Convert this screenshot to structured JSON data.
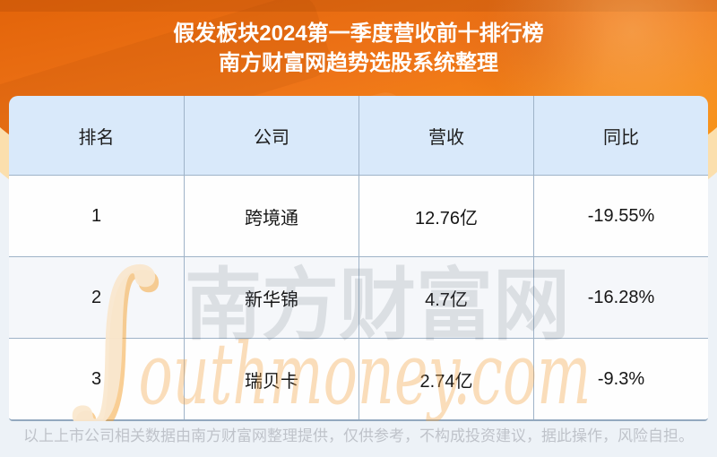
{
  "chart_data": {
    "type": "table",
    "title": "假发板块2024第一季度营收前十排行榜",
    "subtitle": "南方财富网趋势选股系统整理",
    "columns": [
      "排名",
      "公司",
      "营收",
      "同比"
    ],
    "rows": [
      [
        "1",
        "跨境通",
        "12.76亿",
        "-19.55%"
      ],
      [
        "2",
        "新华锦",
        "4.7亿",
        "-16.28%"
      ],
      [
        "3",
        "瑞贝卡",
        "2.74亿",
        "-9.3%"
      ]
    ]
  },
  "watermark": {
    "logo_glyph": "∫",
    "brand_cn": "南方财富网",
    "brand_en": "outhmoney.com"
  },
  "footer": {
    "disclaimer": "以上上市公司相关数据由南方财富网整理提供，仅供参考，不构成投资建议，据此操作，风险自担。"
  },
  "colors": {
    "orange_top": "#e26309",
    "orange_bottom": "#fa9d10",
    "cream_band": "#fbdfad",
    "page_bg": "#edf2f7",
    "header_cell_bg": "#d9e9fa",
    "row_alt_bg": "#f5f7fa",
    "table_border": "#9fb3c8",
    "title_text": "#ffffff",
    "cell_text": "#161616",
    "footer_text": "#bfc3ca",
    "watermark_orange": "#f6a94e"
  }
}
